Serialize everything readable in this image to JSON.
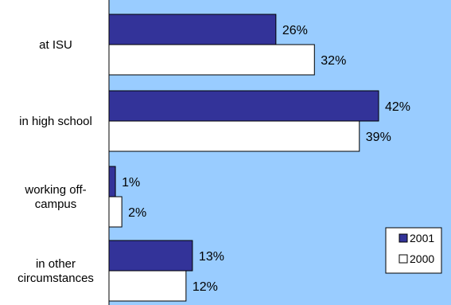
{
  "chart_data": {
    "type": "bar",
    "orientation": "horizontal",
    "categories": [
      [
        "at ISU"
      ],
      [
        "in high school"
      ],
      [
        "working off-",
        "campus"
      ],
      [
        "in other",
        "circumstances"
      ]
    ],
    "series": [
      {
        "name": "2001",
        "values": [
          26,
          42,
          1,
          13
        ],
        "labels": [
          "26%",
          "42%",
          "1%",
          "13%"
        ],
        "color": "#333399"
      },
      {
        "name": "2000",
        "values": [
          32,
          39,
          2,
          12
        ],
        "labels": [
          "32%",
          "39%",
          "2%",
          "12%"
        ],
        "color": "#ffffff"
      }
    ],
    "xlim": [
      0,
      50
    ],
    "grid": false,
    "legend_position": "bottom-right",
    "plot_background": "#99ccff",
    "title": "",
    "xlabel": "",
    "ylabel": ""
  }
}
